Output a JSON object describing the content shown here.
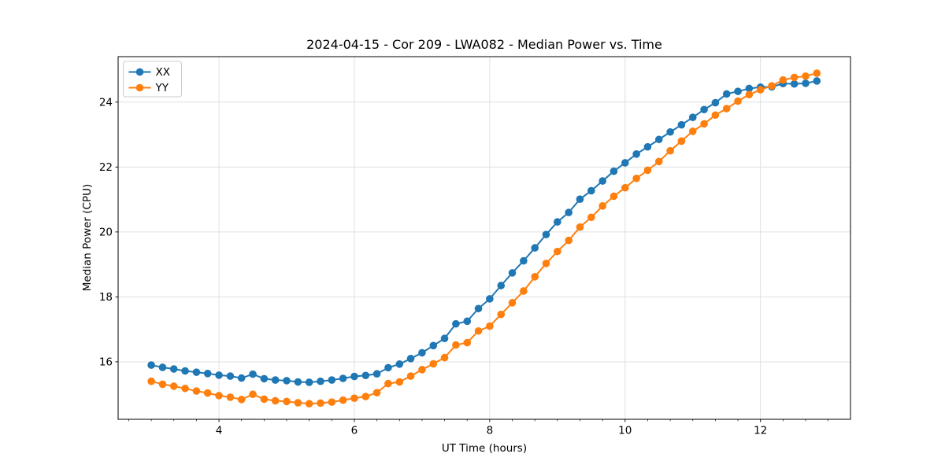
{
  "figure": {
    "background": "#ffffff"
  },
  "chart_data": {
    "type": "line",
    "title": "2024-04-15 - Cor 209 - LWA082 - Median Power vs. Time",
    "xlabel": "UT Time (hours)",
    "ylabel": "Median Power (CPU)",
    "xlim": [
      2.51,
      13.33
    ],
    "ylim": [
      14.23,
      25.4
    ],
    "x_major_ticks": [
      4,
      6,
      8,
      10,
      12
    ],
    "x_minor_tick_step": 0.33333,
    "y_major_ticks": [
      16,
      18,
      20,
      22,
      24
    ],
    "grid": true,
    "grid_color": "#e0e0e0",
    "legend": {
      "position": "upper-left",
      "entries": [
        {
          "label": "XX",
          "color": "#1f77b4"
        },
        {
          "label": "YY",
          "color": "#ff7f0e"
        }
      ]
    },
    "marker": "circle",
    "x": [
      3.0,
      3.167,
      3.333,
      3.5,
      3.667,
      3.833,
      4.0,
      4.167,
      4.333,
      4.5,
      4.667,
      4.833,
      5.0,
      5.167,
      5.333,
      5.5,
      5.667,
      5.833,
      6.0,
      6.167,
      6.333,
      6.5,
      6.667,
      6.833,
      7.0,
      7.167,
      7.333,
      7.5,
      7.667,
      7.833,
      8.0,
      8.167,
      8.333,
      8.5,
      8.667,
      8.833,
      9.0,
      9.167,
      9.333,
      9.5,
      9.667,
      9.833,
      10.0,
      10.167,
      10.333,
      10.5,
      10.667,
      10.833,
      11.0,
      11.167,
      11.333,
      11.5,
      11.667,
      11.833,
      12.0,
      12.167,
      12.333,
      12.5,
      12.667,
      12.833
    ],
    "series": [
      {
        "name": "XX",
        "color": "#1f77b4",
        "values": [
          15.9,
          15.83,
          15.78,
          15.72,
          15.68,
          15.64,
          15.59,
          15.56,
          15.5,
          15.62,
          15.48,
          15.44,
          15.42,
          15.38,
          15.37,
          15.4,
          15.44,
          15.49,
          15.55,
          15.58,
          15.63,
          15.82,
          15.93,
          16.1,
          16.28,
          16.5,
          16.72,
          17.17,
          17.25,
          17.64,
          17.94,
          18.35,
          18.74,
          19.11,
          19.51,
          19.92,
          20.31,
          20.6,
          21.01,
          21.27,
          21.57,
          21.87,
          22.13,
          22.4,
          22.62,
          22.85,
          23.08,
          23.3,
          23.53,
          23.77,
          23.98,
          24.25,
          24.33,
          24.42,
          24.46,
          24.47,
          24.57,
          24.56,
          24.58,
          24.65
        ]
      },
      {
        "name": "YY",
        "color": "#ff7f0e",
        "values": [
          15.4,
          15.31,
          15.25,
          15.18,
          15.1,
          15.04,
          14.96,
          14.91,
          14.84,
          15.0,
          14.85,
          14.8,
          14.78,
          14.74,
          14.71,
          14.73,
          14.76,
          14.82,
          14.88,
          14.93,
          15.05,
          15.33,
          15.38,
          15.56,
          15.76,
          15.94,
          16.13,
          16.52,
          16.59,
          16.95,
          17.1,
          17.46,
          17.82,
          18.18,
          18.62,
          19.03,
          19.4,
          19.74,
          20.15,
          20.45,
          20.8,
          21.1,
          21.36,
          21.65,
          21.9,
          22.17,
          22.5,
          22.8,
          23.1,
          23.33,
          23.6,
          23.8,
          24.03,
          24.23,
          24.38,
          24.5,
          24.68,
          24.76,
          24.8,
          24.89
        ]
      }
    ]
  }
}
